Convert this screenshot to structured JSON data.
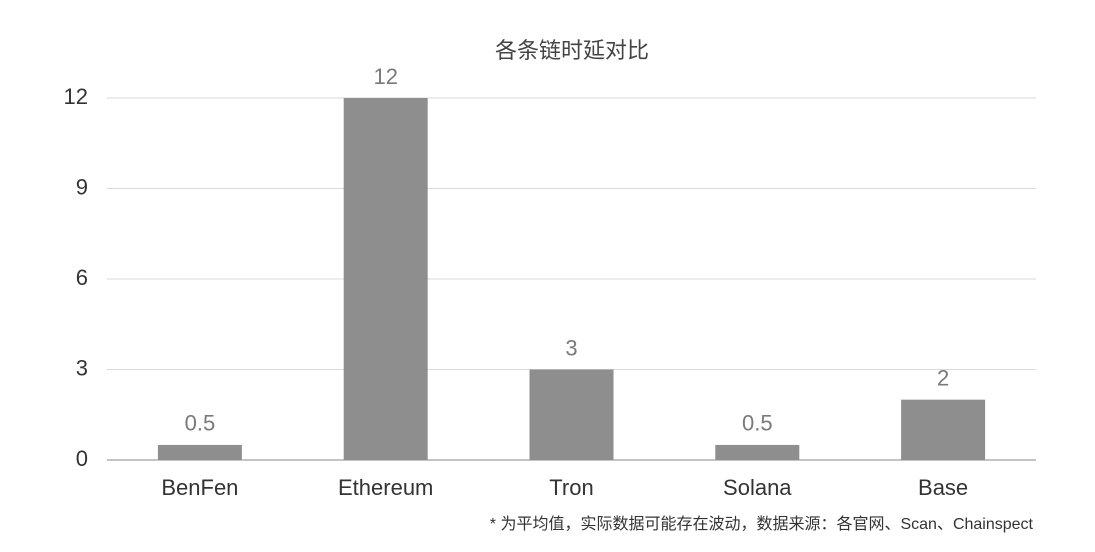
{
  "chart_data": {
    "type": "bar",
    "title": "各条链时延对比",
    "categories": [
      "BenFen",
      "Ethereum",
      "Tron",
      "Solana",
      "Base"
    ],
    "values": [
      0.5,
      12,
      3,
      0.5,
      2
    ],
    "color": "#8e8e8e",
    "ylim": [
      0,
      12
    ],
    "yticks": [
      0,
      3,
      6,
      9,
      12
    ],
    "grid": true,
    "annotation": "* 为平均值，实际数据可能存在波动，数据来源：各官网、Scan、Chainspect"
  }
}
